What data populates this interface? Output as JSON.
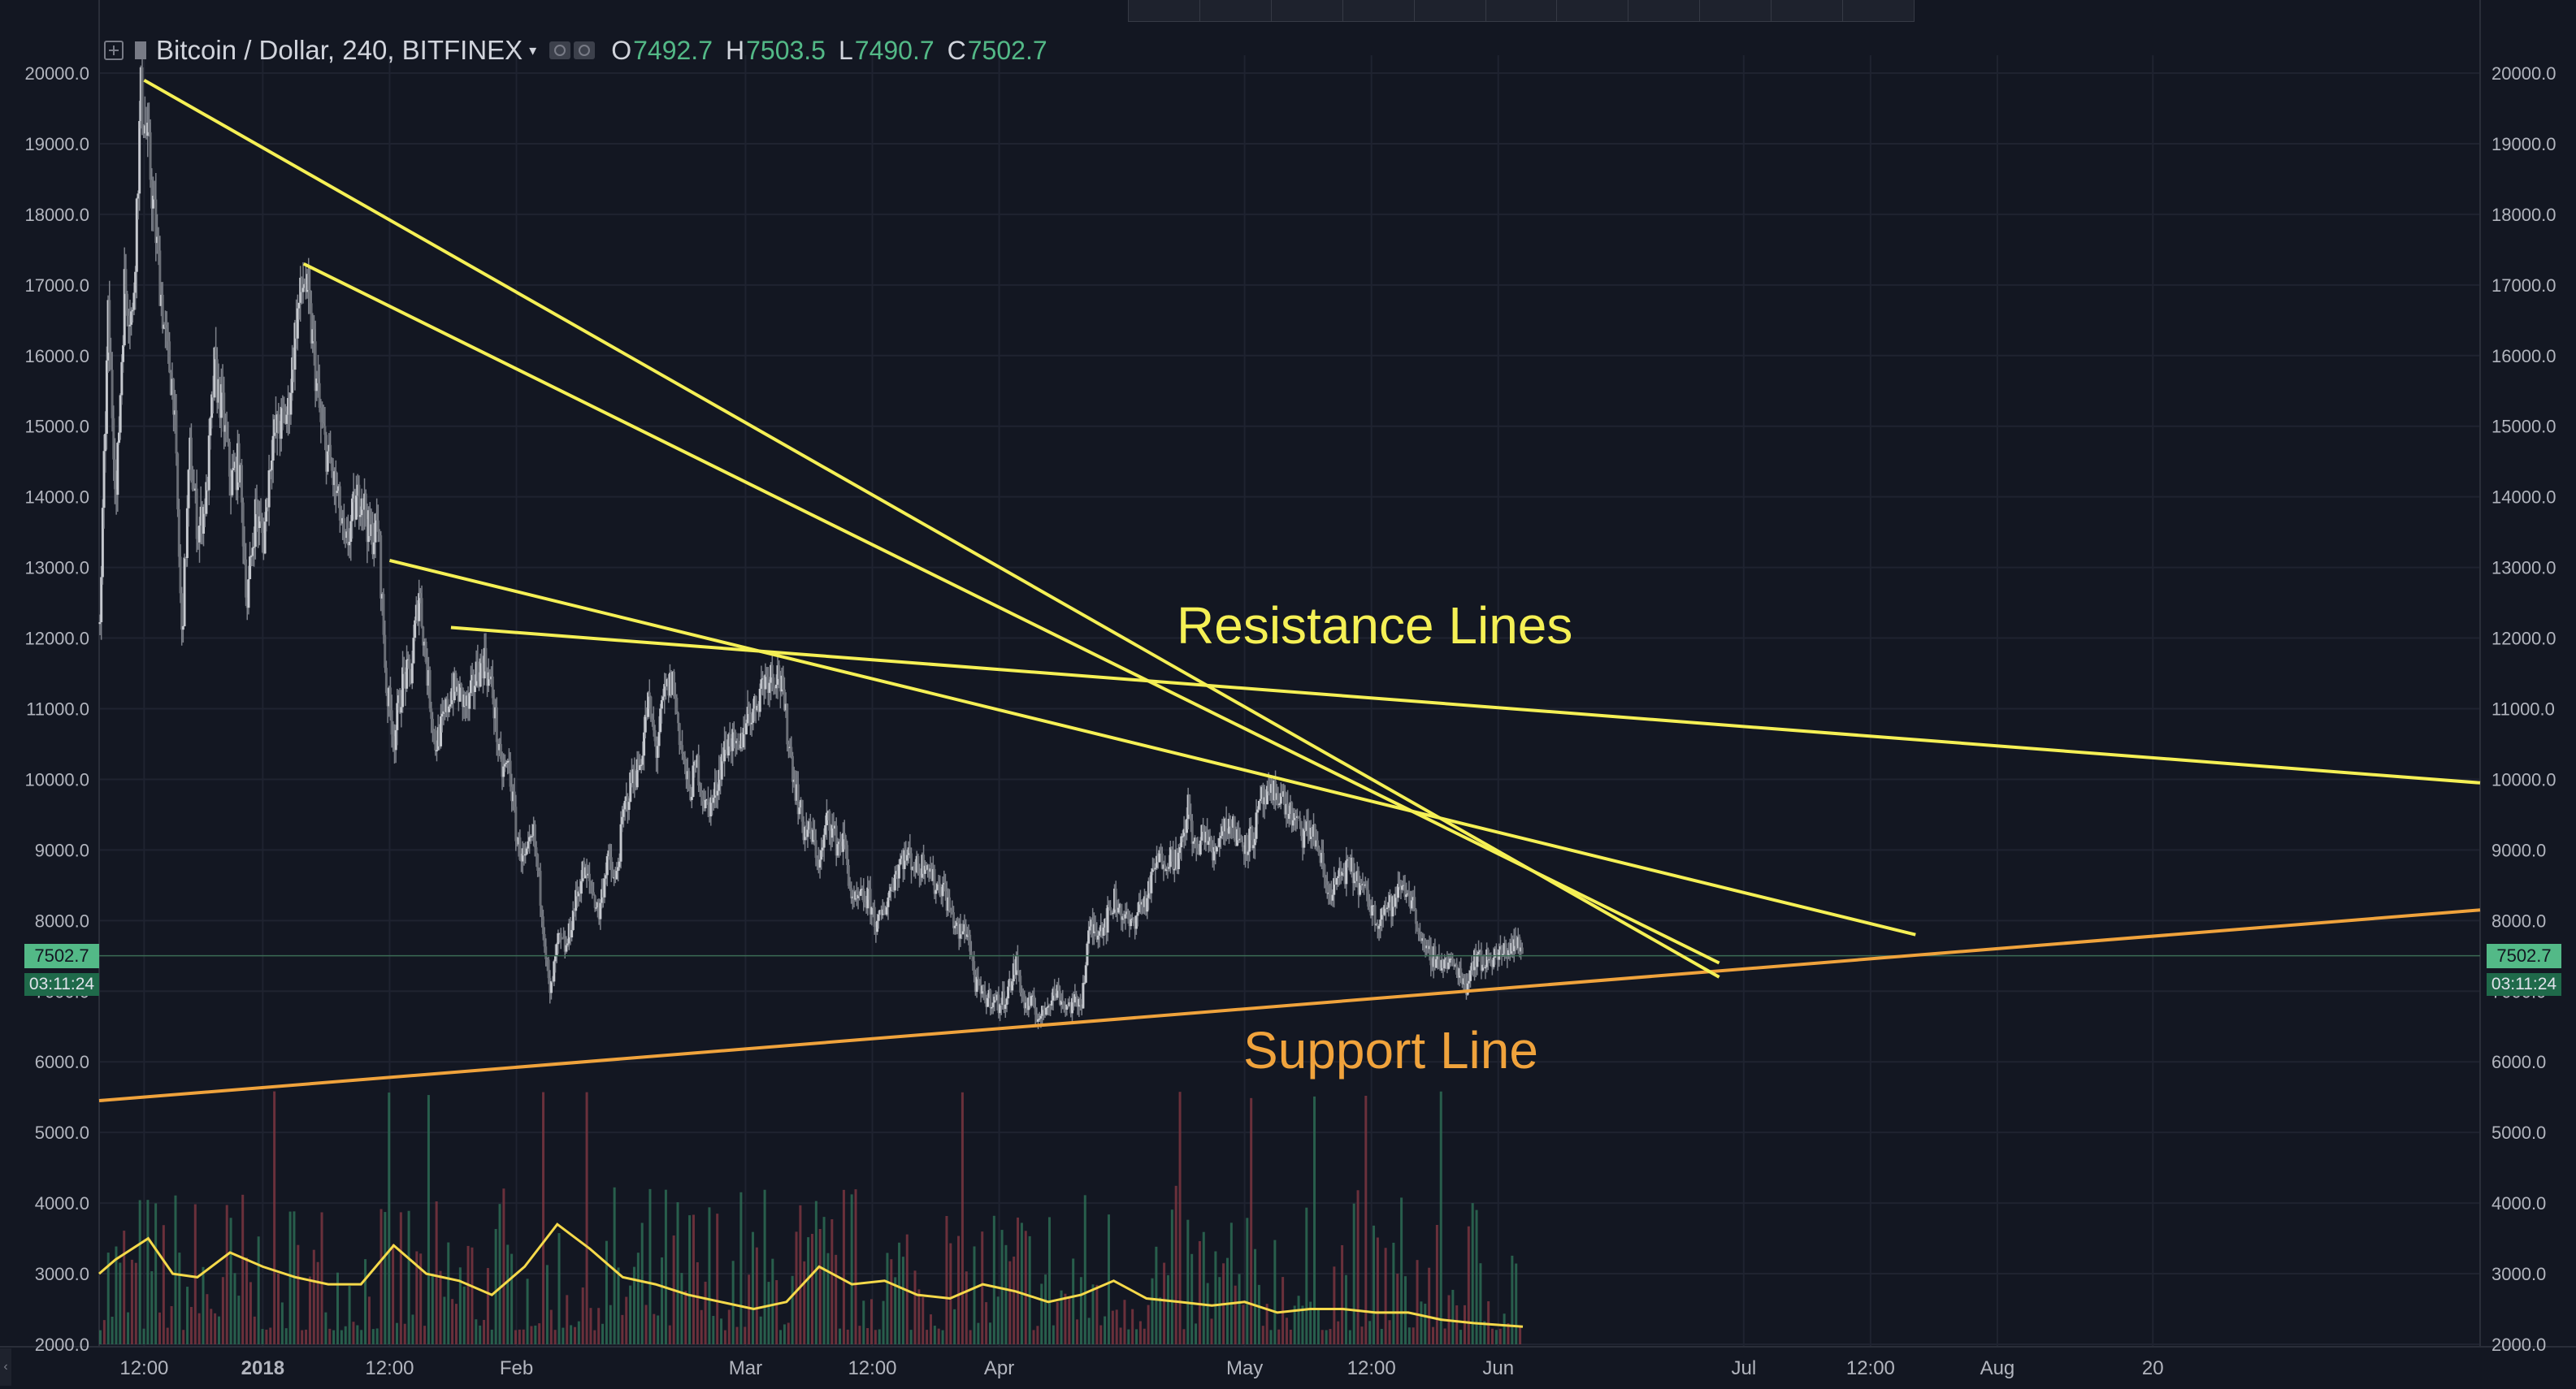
{
  "legend": {
    "symbol": "Bitcoin / Dollar, 240, BITFINEX",
    "open_label": "O",
    "open": "7492.7",
    "high_label": "H",
    "high": "7503.5",
    "low_label": "L",
    "low": "7490.7",
    "close_label": "C",
    "close": "7502.7",
    "icons": [
      "add-symbol-icon",
      "flag-icon",
      "dropdown-caret-icon",
      "eye-icon",
      "settings-icon"
    ]
  },
  "last_price_tag": "7502.7",
  "countdown_tag": "03:11:24",
  "annotations": {
    "resistance": "Resistance Lines",
    "support": "Support Line"
  },
  "colors": {
    "background": "#131722",
    "grid": "#1f2330",
    "axis_text": "#b2b5be",
    "up": "#53b987",
    "down": "#eb4d5c",
    "candle": "#8a8e96",
    "resistance": "#f5f055",
    "support": "#f0a33c",
    "volume_ma": "#f5d94a"
  },
  "chart_data": {
    "type": "candlestick",
    "symbol": "BTCUSD",
    "exchange": "BITFINEX",
    "interval": "240",
    "y_ticks": [
      "20000.0",
      "19000.0",
      "18000.0",
      "17000.0",
      "16000.0",
      "15000.0",
      "14000.0",
      "13000.0",
      "12000.0",
      "11000.0",
      "10000.0",
      "9000.0",
      "8000.0",
      "7000.0",
      "6000.0",
      "5000.0",
      "4000.0",
      "3000.0",
      "2000.0"
    ],
    "ylim": [
      1950,
      20350
    ],
    "y_axes": [
      "left",
      "right"
    ],
    "x_ticks": [
      "12:00",
      "2018",
      "12:00",
      "Feb",
      "Mar",
      "12:00",
      "Apr",
      "May",
      "12:00",
      "Jun",
      "Jul",
      "12:00",
      "Aug",
      "20"
    ],
    "x_tick_dates": [
      "2017-12-17T12:00",
      "2018-01-01",
      "2018-01-16T12:00",
      "2018-02-01",
      "2018-03-01",
      "2018-03-16T12:00",
      "2018-04-01",
      "2018-05-01",
      "2018-05-16T12:00",
      "2018-06-01",
      "2018-07-01",
      "2018-07-16T12:00",
      "2018-08-01",
      "2018-08-20"
    ],
    "xlim": [
      "2017-12-12",
      "2018-09-29"
    ],
    "grid": true,
    "price_path": [
      [
        "2017-12-12",
        12200
      ],
      [
        "2017-12-13",
        16500
      ],
      [
        "2017-12-14",
        14000
      ],
      [
        "2017-12-15",
        17000
      ],
      [
        "2017-12-16",
        16500
      ],
      [
        "2017-12-17",
        19700
      ],
      [
        "2017-12-18",
        18800
      ],
      [
        "2017-12-19",
        17500
      ],
      [
        "2017-12-20",
        16200
      ],
      [
        "2017-12-21",
        15500
      ],
      [
        "2017-12-22",
        12000
      ],
      [
        "2017-12-23",
        14600
      ],
      [
        "2017-12-24",
        13500
      ],
      [
        "2017-12-25",
        14000
      ],
      [
        "2017-12-26",
        15800
      ],
      [
        "2017-12-27",
        15200
      ],
      [
        "2017-12-28",
        14200
      ],
      [
        "2017-12-29",
        14500
      ],
      [
        "2017-12-30",
        12500
      ],
      [
        "2017-12-31",
        13800
      ],
      [
        "2018-01-01",
        13400
      ],
      [
        "2018-01-02",
        14800
      ],
      [
        "2018-01-03",
        15000
      ],
      [
        "2018-01-04",
        15200
      ],
      [
        "2018-01-05",
        16500
      ],
      [
        "2018-01-06",
        17100
      ],
      [
        "2018-01-07",
        16200
      ],
      [
        "2018-01-08",
        15000
      ],
      [
        "2018-01-09",
        14500
      ],
      [
        "2018-01-10",
        14000
      ],
      [
        "2018-01-11",
        13200
      ],
      [
        "2018-01-12",
        13800
      ],
      [
        "2018-01-13",
        14100
      ],
      [
        "2018-01-14",
        13400
      ],
      [
        "2018-01-15",
        13600
      ],
      [
        "2018-01-16",
        11300
      ],
      [
        "2018-01-17",
        10600
      ],
      [
        "2018-01-18",
        11400
      ],
      [
        "2018-01-19",
        11500
      ],
      [
        "2018-01-20",
        12700
      ],
      [
        "2018-01-21",
        11500
      ],
      [
        "2018-01-22",
        10500
      ],
      [
        "2018-01-23",
        10800
      ],
      [
        "2018-01-24",
        11300
      ],
      [
        "2018-01-25",
        11200
      ],
      [
        "2018-01-26",
        11000
      ],
      [
        "2018-01-27",
        11500
      ],
      [
        "2018-01-28",
        11700
      ],
      [
        "2018-01-29",
        11200
      ],
      [
        "2018-01-30",
        10100
      ],
      [
        "2018-01-31",
        10200
      ],
      [
        "2018-02-01",
        9100
      ],
      [
        "2018-02-02",
        8800
      ],
      [
        "2018-02-03",
        9200
      ],
      [
        "2018-02-04",
        8200
      ],
      [
        "2018-02-05",
        6900
      ],
      [
        "2018-02-06",
        7700
      ],
      [
        "2018-02-07",
        7600
      ],
      [
        "2018-02-08",
        8200
      ],
      [
        "2018-02-09",
        8700
      ],
      [
        "2018-02-10",
        8500
      ],
      [
        "2018-02-11",
        8100
      ],
      [
        "2018-02-12",
        8900
      ],
      [
        "2018-02-13",
        8500
      ],
      [
        "2018-02-14",
        9500
      ],
      [
        "2018-02-15",
        10000
      ],
      [
        "2018-02-16",
        10200
      ],
      [
        "2018-02-17",
        11100
      ],
      [
        "2018-02-18",
        10400
      ],
      [
        "2018-02-19",
        11200
      ],
      [
        "2018-02-20",
        11400
      ],
      [
        "2018-02-21",
        10500
      ],
      [
        "2018-02-22",
        9800
      ],
      [
        "2018-02-23",
        10200
      ],
      [
        "2018-02-24",
        9600
      ],
      [
        "2018-02-25",
        9700
      ],
      [
        "2018-02-26",
        10300
      ],
      [
        "2018-02-27",
        10600
      ],
      [
        "2018-02-28",
        10300
      ],
      [
        "2018-03-01",
        10900
      ],
      [
        "2018-03-02",
        11000
      ],
      [
        "2018-03-03",
        11400
      ],
      [
        "2018-03-04",
        11500
      ],
      [
        "2018-03-05",
        11500
      ],
      [
        "2018-03-06",
        10700
      ],
      [
        "2018-03-07",
        9900
      ],
      [
        "2018-03-08",
        9300
      ],
      [
        "2018-03-09",
        9200
      ],
      [
        "2018-03-10",
        8800
      ],
      [
        "2018-03-11",
        9500
      ],
      [
        "2018-03-12",
        9100
      ],
      [
        "2018-03-13",
        9100
      ],
      [
        "2018-03-14",
        8200
      ],
      [
        "2018-03-15",
        8300
      ],
      [
        "2018-03-16",
        8300
      ],
      [
        "2018-03-17",
        7900
      ],
      [
        "2018-03-18",
        8200
      ],
      [
        "2018-03-19",
        8600
      ],
      [
        "2018-03-20",
        8900
      ],
      [
        "2018-03-21",
        8900
      ],
      [
        "2018-03-22",
        8700
      ],
      [
        "2018-03-23",
        8900
      ],
      [
        "2018-03-24",
        8500
      ],
      [
        "2018-03-25",
        8500
      ],
      [
        "2018-03-26",
        8100
      ],
      [
        "2018-03-27",
        7800
      ],
      [
        "2018-03-28",
        7900
      ],
      [
        "2018-03-29",
        7100
      ],
      [
        "2018-03-30",
        6900
      ],
      [
        "2018-03-31",
        6900
      ],
      [
        "2018-04-01",
        6800
      ],
      [
        "2018-04-02",
        7000
      ],
      [
        "2018-04-03",
        7400
      ],
      [
        "2018-04-04",
        6800
      ],
      [
        "2018-04-05",
        6800
      ],
      [
        "2018-04-06",
        6600
      ],
      [
        "2018-04-07",
        6900
      ],
      [
        "2018-04-08",
        7000
      ],
      [
        "2018-04-09",
        6800
      ],
      [
        "2018-04-10",
        6800
      ],
      [
        "2018-04-11",
        6900
      ],
      [
        "2018-04-12",
        7900
      ],
      [
        "2018-04-13",
        7900
      ],
      [
        "2018-04-14",
        8000
      ],
      [
        "2018-04-15",
        8300
      ],
      [
        "2018-04-16",
        8100
      ],
      [
        "2018-04-17",
        7900
      ],
      [
        "2018-04-18",
        8200
      ],
      [
        "2018-04-19",
        8300
      ],
      [
        "2018-04-20",
        8800
      ],
      [
        "2018-04-21",
        8900
      ],
      [
        "2018-04-22",
        8900
      ],
      [
        "2018-04-23",
        8900
      ],
      [
        "2018-04-24",
        9600
      ],
      [
        "2018-04-25",
        8900
      ],
      [
        "2018-04-26",
        9300
      ],
      [
        "2018-04-27",
        8900
      ],
      [
        "2018-04-28",
        9300
      ],
      [
        "2018-04-29",
        9400
      ],
      [
        "2018-04-30",
        9200
      ],
      [
        "2018-05-01",
        9100
      ],
      [
        "2018-05-02",
        9200
      ],
      [
        "2018-05-03",
        9700
      ],
      [
        "2018-05-04",
        9700
      ],
      [
        "2018-05-05",
        9850
      ],
      [
        "2018-05-06",
        9600
      ],
      [
        "2018-05-07",
        9400
      ],
      [
        "2018-05-08",
        9200
      ],
      [
        "2018-05-09",
        9300
      ],
      [
        "2018-05-10",
        9000
      ],
      [
        "2018-05-11",
        8400
      ],
      [
        "2018-05-12",
        8500
      ],
      [
        "2018-05-13",
        8700
      ],
      [
        "2018-05-14",
        8700
      ],
      [
        "2018-05-15",
        8500
      ],
      [
        "2018-05-16",
        8300
      ],
      [
        "2018-05-17",
        8000
      ],
      [
        "2018-05-18",
        8200
      ],
      [
        "2018-05-19",
        8200
      ],
      [
        "2018-05-20",
        8500
      ],
      [
        "2018-05-21",
        8400
      ],
      [
        "2018-05-22",
        8000
      ],
      [
        "2018-05-23",
        7500
      ],
      [
        "2018-05-24",
        7500
      ],
      [
        "2018-05-25",
        7400
      ],
      [
        "2018-05-26",
        7400
      ],
      [
        "2018-05-27",
        7300
      ],
      [
        "2018-05-28",
        7100
      ],
      [
        "2018-05-29",
        7500
      ],
      [
        "2018-05-30",
        7400
      ],
      [
        "2018-05-31",
        7500
      ],
      [
        "2018-06-01",
        7500
      ],
      [
        "2018-06-02",
        7600
      ],
      [
        "2018-06-03",
        7700
      ],
      [
        "2018-06-04",
        7500
      ]
    ],
    "resistance_lines": [
      {
        "start": [
          "2017-12-17T12:00",
          19900
        ],
        "end": [
          "2018-06-28",
          7200
        ]
      },
      {
        "start": [
          "2018-01-06",
          17300
        ],
        "end": [
          "2018-06-28",
          7400
        ]
      },
      {
        "start": [
          "2018-01-16T12:00",
          13100
        ],
        "end": [
          "2018-07-22",
          7800
        ]
      },
      {
        "start": [
          "2018-01-24",
          12150
        ],
        "end": [
          "2018-09-29",
          9950
        ]
      }
    ],
    "support_line": {
      "start": [
        "2017-12-12",
        5450
      ],
      "end": [
        "2018-09-29",
        8150
      ]
    },
    "volume_ma_path": [
      [
        "2017-12-12",
        3000
      ],
      [
        "2017-12-14",
        3200
      ],
      [
        "2017-12-18",
        3500
      ],
      [
        "2017-12-21",
        3000
      ],
      [
        "2017-12-24",
        2950
      ],
      [
        "2017-12-28",
        3300
      ],
      [
        "2018-01-01",
        3100
      ],
      [
        "2018-01-05",
        2950
      ],
      [
        "2018-01-09",
        2850
      ],
      [
        "2018-01-13",
        2850
      ],
      [
        "2018-01-17",
        3400
      ],
      [
        "2018-01-21",
        3000
      ],
      [
        "2018-01-25",
        2900
      ],
      [
        "2018-01-29",
        2700
      ],
      [
        "2018-02-02",
        3100
      ],
      [
        "2018-02-06",
        3700
      ],
      [
        "2018-02-10",
        3350
      ],
      [
        "2018-02-14",
        2950
      ],
      [
        "2018-02-18",
        2850
      ],
      [
        "2018-02-22",
        2700
      ],
      [
        "2018-02-26",
        2600
      ],
      [
        "2018-03-02",
        2500
      ],
      [
        "2018-03-06",
        2600
      ],
      [
        "2018-03-10",
        3100
      ],
      [
        "2018-03-14",
        2850
      ],
      [
        "2018-03-18",
        2900
      ],
      [
        "2018-03-22",
        2700
      ],
      [
        "2018-03-26",
        2650
      ],
      [
        "2018-03-30",
        2850
      ],
      [
        "2018-04-03",
        2750
      ],
      [
        "2018-04-07",
        2600
      ],
      [
        "2018-04-11",
        2700
      ],
      [
        "2018-04-15",
        2900
      ],
      [
        "2018-04-19",
        2650
      ],
      [
        "2018-04-23",
        2600
      ],
      [
        "2018-04-27",
        2550
      ],
      [
        "2018-05-01",
        2600
      ],
      [
        "2018-05-05",
        2450
      ],
      [
        "2018-05-09",
        2500
      ],
      [
        "2018-05-13",
        2500
      ],
      [
        "2018-05-17",
        2450
      ],
      [
        "2018-05-21",
        2450
      ],
      [
        "2018-05-25",
        2350
      ],
      [
        "2018-05-29",
        2300
      ],
      [
        "2018-06-04",
        2250
      ]
    ],
    "volume_range": [
      "2017-12-12",
      "2018-06-04"
    ],
    "last_price": 7502.7
  }
}
